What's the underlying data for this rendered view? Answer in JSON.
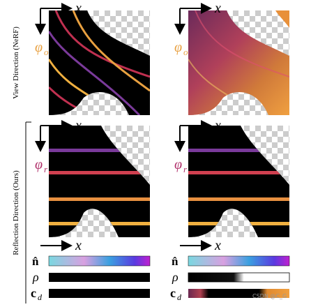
{
  "rows": [
    {
      "label": "View Direction (NeRF)",
      "x": "x",
      "phi": "φ",
      "sub": "o"
    },
    {
      "label": "Reflection Direction (Ours)",
      "x": "x",
      "phi": "φ",
      "sub": "r"
    }
  ],
  "bars": {
    "x": "x",
    "normal": "n̂",
    "rho": "ρ",
    "c": "c",
    "c_sub": "d"
  },
  "watermark": "CSDN @C_G"
}
